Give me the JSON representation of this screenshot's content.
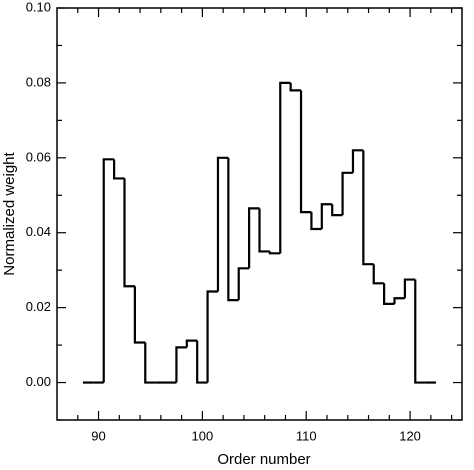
{
  "chart_data": {
    "type": "step",
    "x_label": "Order number",
    "y_label": "Normalized weight",
    "x": [
      89,
      90,
      91,
      92,
      93,
      94,
      95,
      96,
      97,
      98,
      99,
      100,
      101,
      102,
      103,
      104,
      105,
      106,
      107,
      108,
      109,
      110,
      111,
      112,
      113,
      114,
      115,
      116,
      117,
      118,
      119,
      120,
      121,
      122
    ],
    "values": [
      0,
      0,
      0.0596,
      0.0545,
      0.0257,
      0.0107,
      0,
      0,
      0,
      0.0094,
      0.0112,
      0,
      0.0243,
      0.06,
      0.022,
      0.0305,
      0.0465,
      0.035,
      0.0345,
      0.08,
      0.078,
      0.0455,
      0.041,
      0.0476,
      0.0447,
      0.056,
      0.062,
      0.0316,
      0.0265,
      0.021,
      0.0225,
      0.0275,
      0,
      0
    ],
    "color": "#000000",
    "xlim": [
      86,
      125
    ],
    "ylim": [
      -0.01,
      0.1
    ],
    "xticks": [
      90,
      100,
      110,
      120
    ],
    "xminorticks": [
      88,
      92,
      94,
      96,
      98,
      102,
      104,
      106,
      108,
      112,
      114,
      116,
      118,
      122,
      124
    ],
    "yticks": [
      {
        "value": 0,
        "label": "0.00"
      },
      {
        "value": 0.02,
        "label": "0.02"
      },
      {
        "value": 0.04,
        "label": "0.04"
      },
      {
        "value": 0.06,
        "label": "0.06"
      },
      {
        "value": 0.08,
        "label": "0.08"
      },
      {
        "value": 0.1,
        "label": "0.10"
      }
    ],
    "yminorticks": [
      -0.01,
      0.01,
      0.03,
      0.05,
      0.07,
      0.09
    ],
    "grid": false
  }
}
